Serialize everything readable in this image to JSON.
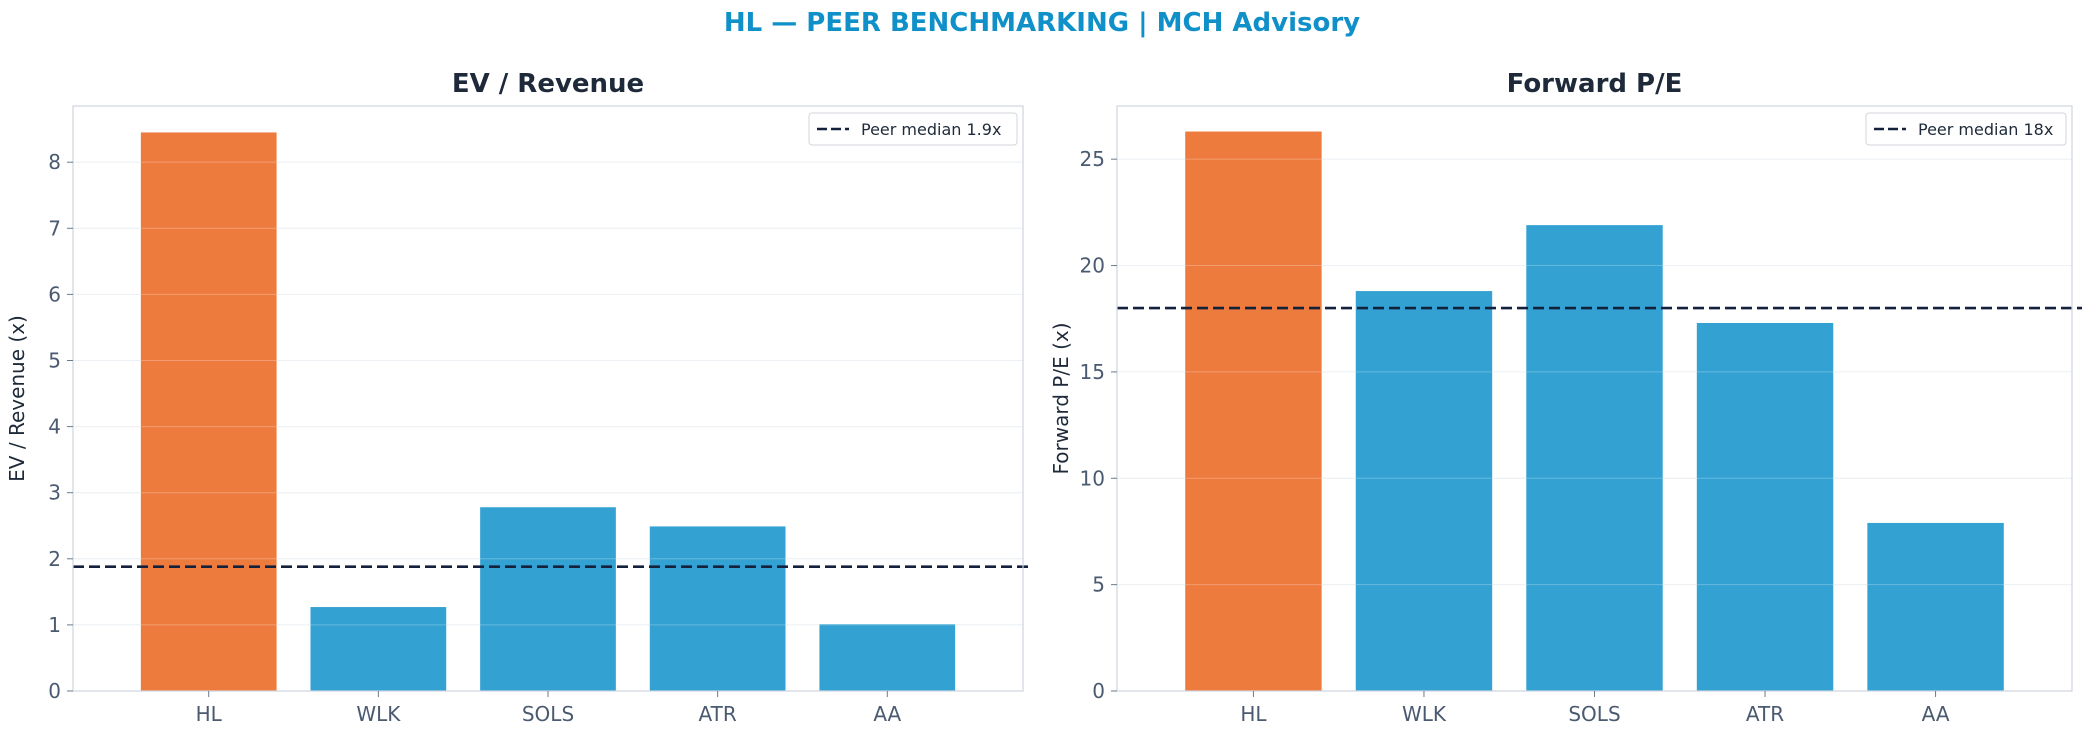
{
  "suptitle": "HL — PEER BENCHMARKING | MCH Advisory",
  "colors": {
    "highlight": "#ED7B3E",
    "peer": "#33A2D3",
    "median_line": "#14213D",
    "title": "#1090C8"
  },
  "chart_data": [
    {
      "type": "bar",
      "title": "EV / Revenue",
      "xlabel": "",
      "ylabel": "EV / Revenue (x)",
      "categories": [
        "HL",
        "WLK",
        "SOLS",
        "ATR",
        "AA"
      ],
      "values": [
        8.45,
        1.27,
        2.78,
        2.49,
        1.01
      ],
      "highlight": "HL",
      "ylim": [
        0,
        8.85
      ],
      "yticks": [
        0,
        1,
        2,
        3,
        4,
        5,
        6,
        7,
        8
      ],
      "reference_line": {
        "value": 1.88,
        "label": "Peer median 1.9x",
        "style": "dashed"
      },
      "legend": "top-right",
      "grid": true
    },
    {
      "type": "bar",
      "title": "Forward P/E",
      "xlabel": "",
      "ylabel": "Forward P/E (x)",
      "categories": [
        "HL",
        "WLK",
        "SOLS",
        "ATR",
        "AA"
      ],
      "values": [
        26.3,
        18.8,
        21.9,
        17.3,
        7.9
      ],
      "highlight": "HL",
      "ylim": [
        0,
        27.5
      ],
      "yticks": [
        0,
        5,
        10,
        15,
        20,
        25
      ],
      "reference_line": {
        "value": 18.0,
        "label": "Peer median 18x",
        "style": "dashed"
      },
      "legend": "top-right",
      "grid": true
    }
  ]
}
